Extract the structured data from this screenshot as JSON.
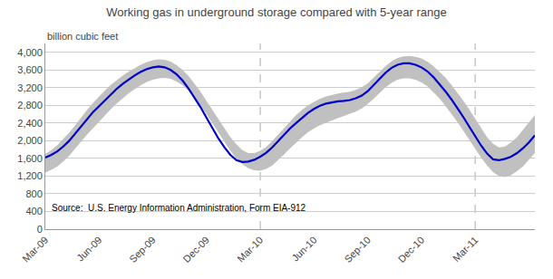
{
  "chart_data": {
    "type": "line",
    "title": "Working gas in underground storage compared with 5-year range",
    "ylabel": "billion cubic feet",
    "annotations": [
      "Source:  U.S. Energy Information Administration, Form EIA-912"
    ],
    "categories": [
      "Mar-09",
      null,
      null,
      null,
      null,
      null,
      null,
      null,
      null,
      "Jun-09",
      null,
      null,
      null,
      null,
      null,
      null,
      null,
      null,
      "Sep-09",
      null,
      null,
      null,
      null,
      null,
      null,
      null,
      null,
      "Dec-09",
      null,
      null,
      null,
      null,
      null,
      null,
      null,
      null,
      "Mar-10",
      null,
      null,
      null,
      null,
      null,
      null,
      null,
      null,
      "Jun-10",
      null,
      null,
      null,
      null,
      null,
      null,
      null,
      null,
      "Sep-10",
      null,
      null,
      null,
      null,
      null,
      null,
      null,
      null,
      "Dec-10",
      null,
      null,
      null,
      null,
      null,
      null,
      null,
      null,
      "Mar-11",
      null,
      null,
      null,
      null,
      null,
      null,
      null,
      null,
      null,
      null
    ],
    "series": [
      {
        "type": "band",
        "color": "#C0C0C0",
        "lower": [
          1280,
          1340,
          1420,
          1530,
          1660,
          1810,
          1980,
          2140,
          2290,
          2440,
          2580,
          2720,
          2850,
          2970,
          3080,
          3170,
          3260,
          3330,
          3380,
          3410,
          3420,
          3400,
          3340,
          3250,
          3130,
          2980,
          2800,
          2600,
          2390,
          2180,
          1970,
          1770,
          1600,
          1470,
          1380,
          1330,
          1320,
          1360,
          1440,
          1560,
          1690,
          1830,
          1960,
          2080,
          2190,
          2280,
          2350,
          2410,
          2460,
          2510,
          2560,
          2610,
          2660,
          2730,
          2830,
          2950,
          3080,
          3210,
          3310,
          3380,
          3410,
          3410,
          3380,
          3320,
          3230,
          3100,
          2960,
          2790,
          2620,
          2430,
          2230,
          2020,
          1820,
          1620,
          1440,
          1290,
          1200,
          1180,
          1220,
          1310,
          1420,
          1560,
          1720
        ],
        "upper": [
          1700,
          1790,
          1900,
          2030,
          2180,
          2350,
          2530,
          2700,
          2860,
          3010,
          3140,
          3270,
          3380,
          3480,
          3570,
          3650,
          3720,
          3780,
          3820,
          3840,
          3830,
          3790,
          3710,
          3600,
          3460,
          3290,
          3110,
          2900,
          2690,
          2480,
          2270,
          2080,
          1920,
          1790,
          1720,
          1720,
          1770,
          1860,
          1990,
          2140,
          2300,
          2450,
          2580,
          2700,
          2800,
          2880,
          2950,
          3000,
          3040,
          3070,
          3090,
          3110,
          3150,
          3210,
          3300,
          3420,
          3560,
          3690,
          3800,
          3870,
          3910,
          3920,
          3900,
          3860,
          3790,
          3690,
          3570,
          3430,
          3270,
          3100,
          2910,
          2710,
          2500,
          2280,
          2080,
          1930,
          1850,
          1870,
          1960,
          2080,
          2240,
          2410,
          2580
        ]
      },
      {
        "type": "line",
        "color": "#0000CC",
        "values": [
          1620,
          1680,
          1760,
          1870,
          2000,
          2160,
          2340,
          2500,
          2650,
          2780,
          2920,
          3060,
          3180,
          3290,
          3390,
          3480,
          3560,
          3620,
          3660,
          3680,
          3660,
          3600,
          3500,
          3360,
          3180,
          2980,
          2760,
          2520,
          2280,
          2050,
          1850,
          1680,
          1560,
          1520,
          1530,
          1570,
          1640,
          1730,
          1850,
          2000,
          2150,
          2280,
          2400,
          2520,
          2630,
          2720,
          2790,
          2840,
          2870,
          2890,
          2900,
          2920,
          2960,
          3020,
          3120,
          3250,
          3400,
          3540,
          3650,
          3720,
          3750,
          3750,
          3720,
          3660,
          3570,
          3440,
          3290,
          3120,
          2940,
          2750,
          2540,
          2320,
          2100,
          1890,
          1710,
          1580,
          1560,
          1590,
          1640,
          1720,
          1830,
          1960,
          2120
        ]
      }
    ],
    "vlines": [
      {
        "x": "Mar-10",
        "color": "#AAAAAA",
        "line_style": "dashed"
      },
      {
        "x": "Mar-11",
        "color": "#AAAAAA",
        "line_style": "dashed"
      }
    ],
    "ylim": [
      0,
      4200
    ],
    "yticks": [
      0,
      400,
      800,
      {
        "value": 1200,
        "label": "1,200"
      },
      {
        "value": 1600,
        "label": "1,600"
      },
      {
        "value": 2000,
        "label": "2,000"
      },
      {
        "value": 2400,
        "label": "2,400"
      },
      {
        "value": 2800,
        "label": "2,800"
      },
      {
        "value": 3200,
        "label": "3,200"
      },
      {
        "value": 3600,
        "label": "3,600"
      },
      {
        "value": 4000,
        "label": "4,000"
      }
    ],
    "grid": true
  }
}
